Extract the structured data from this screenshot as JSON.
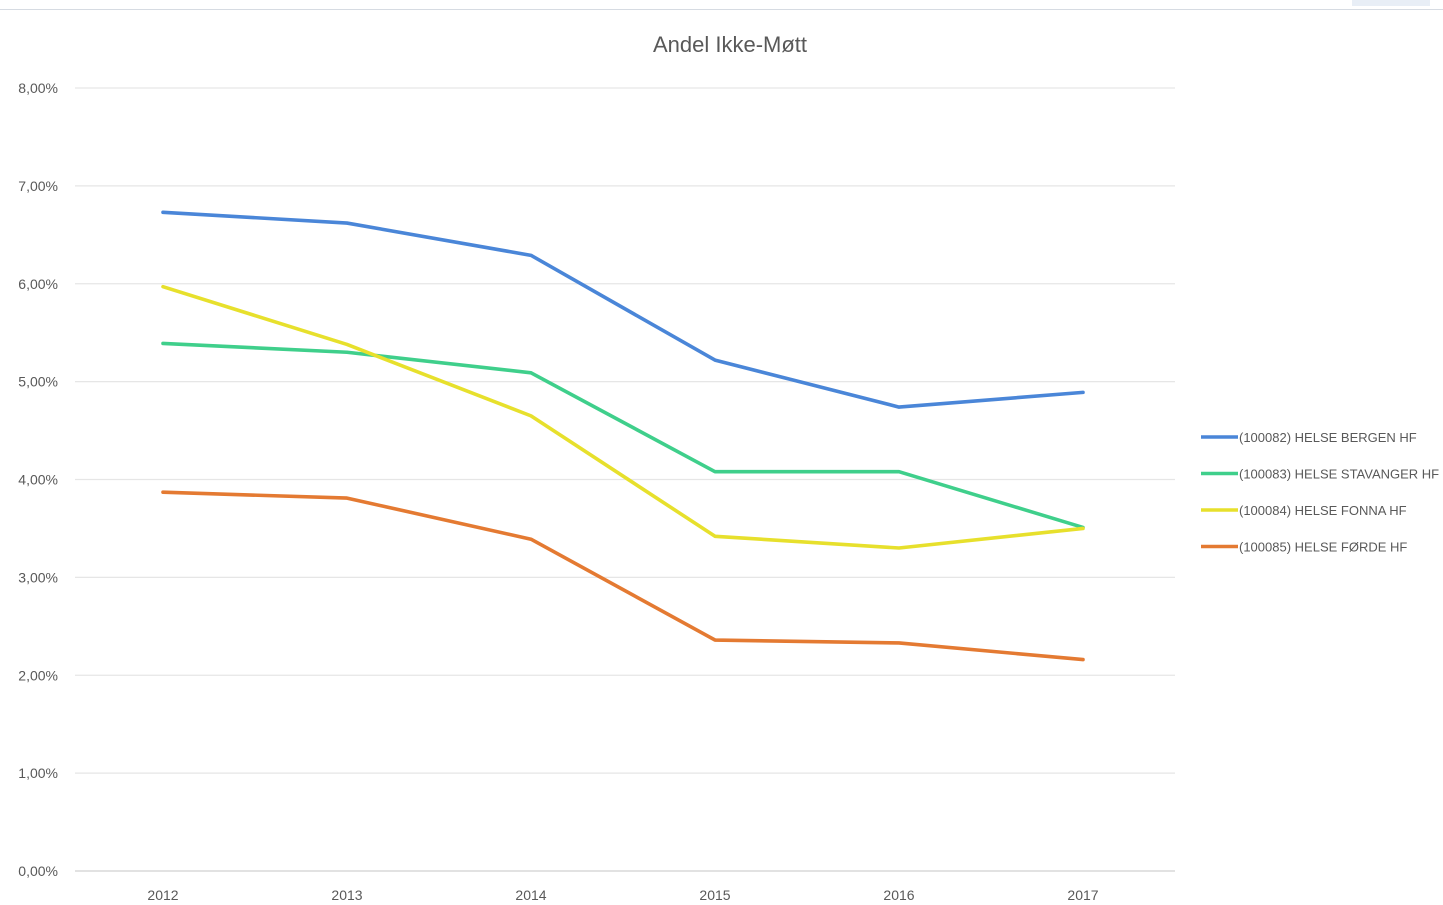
{
  "chart_data": {
    "type": "line",
    "title": "Andel Ikke-Møtt",
    "xlabel": "",
    "ylabel": "",
    "categories": [
      "2012",
      "2013",
      "2014",
      "2015",
      "2016",
      "2017"
    ],
    "ylim": [
      0,
      8
    ],
    "y_ticks": [
      "0,00%",
      "1,00%",
      "2,00%",
      "3,00%",
      "4,00%",
      "5,00%",
      "6,00%",
      "7,00%",
      "8,00%"
    ],
    "grid": true,
    "legend_position": "right",
    "series": [
      {
        "name": "(100082) HELSE BERGEN HF",
        "color": "#4a86d8",
        "values": [
          6.73,
          6.62,
          6.29,
          5.22,
          4.74,
          4.89
        ]
      },
      {
        "name": "(100083) HELSE STAVANGER HF",
        "color": "#3fcf8b",
        "values": [
          5.39,
          5.3,
          5.09,
          4.08,
          4.08,
          3.51
        ]
      },
      {
        "name": "(100084) HELSE FONNA HF",
        "color": "#e7e02c",
        "values": [
          5.97,
          5.38,
          4.65,
          3.42,
          3.3,
          3.5
        ]
      },
      {
        "name": "(100085) HELSE FØRDE HF",
        "color": "#e47a32",
        "values": [
          3.87,
          3.81,
          3.39,
          2.36,
          2.33,
          2.16
        ]
      }
    ]
  }
}
